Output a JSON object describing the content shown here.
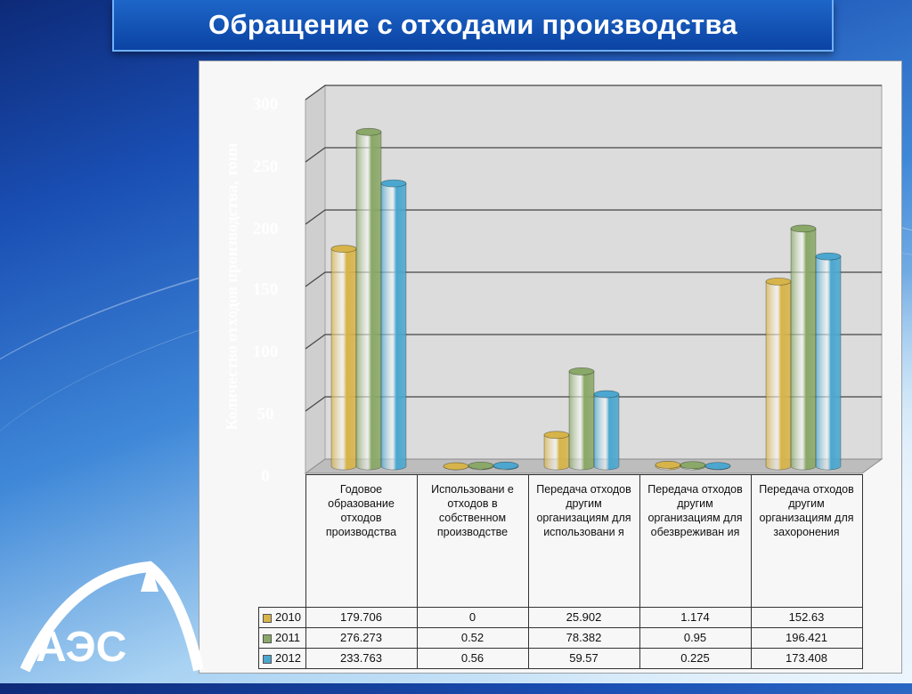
{
  "title": "Обращение с отходами производства",
  "logo_text": "АЭС",
  "chart_data": {
    "type": "bar",
    "ylabel": "Количество отходов производства, тонн",
    "ylim": [
      0,
      300
    ],
    "yticks": [
      "300",
      "250",
      "200",
      "150",
      "100",
      "50",
      "0"
    ],
    "categories": [
      "Годовое образование отходов производства",
      "Использовани е отходов в собственном производстве",
      "Передача отходов другим организациям для использовани я",
      "Передача отходов другим организациям для обезвреживан ия",
      "Передача отходов другим организациям для захоронения"
    ],
    "series": [
      {
        "name": "2010",
        "color": "#d7b44a",
        "values": [
          179.706,
          0,
          25.902,
          1.174,
          152.63
        ],
        "labels": [
          "179.706",
          "0",
          "25.902",
          "1.174",
          "152.63"
        ]
      },
      {
        "name": "2011",
        "color": "#8aa868",
        "values": [
          276.273,
          0.52,
          78.382,
          0.95,
          196.421
        ],
        "labels": [
          "276.273",
          "0.52",
          "78.382",
          "0.95",
          "196.421"
        ]
      },
      {
        "name": "2012",
        "color": "#4ba7cf",
        "values": [
          233.763,
          0.56,
          59.57,
          0.225,
          173.408
        ],
        "labels": [
          "233.763",
          "0.56",
          "59.57",
          "0.225",
          "173.408"
        ]
      }
    ],
    "grid": true,
    "legend": "data-table"
  }
}
